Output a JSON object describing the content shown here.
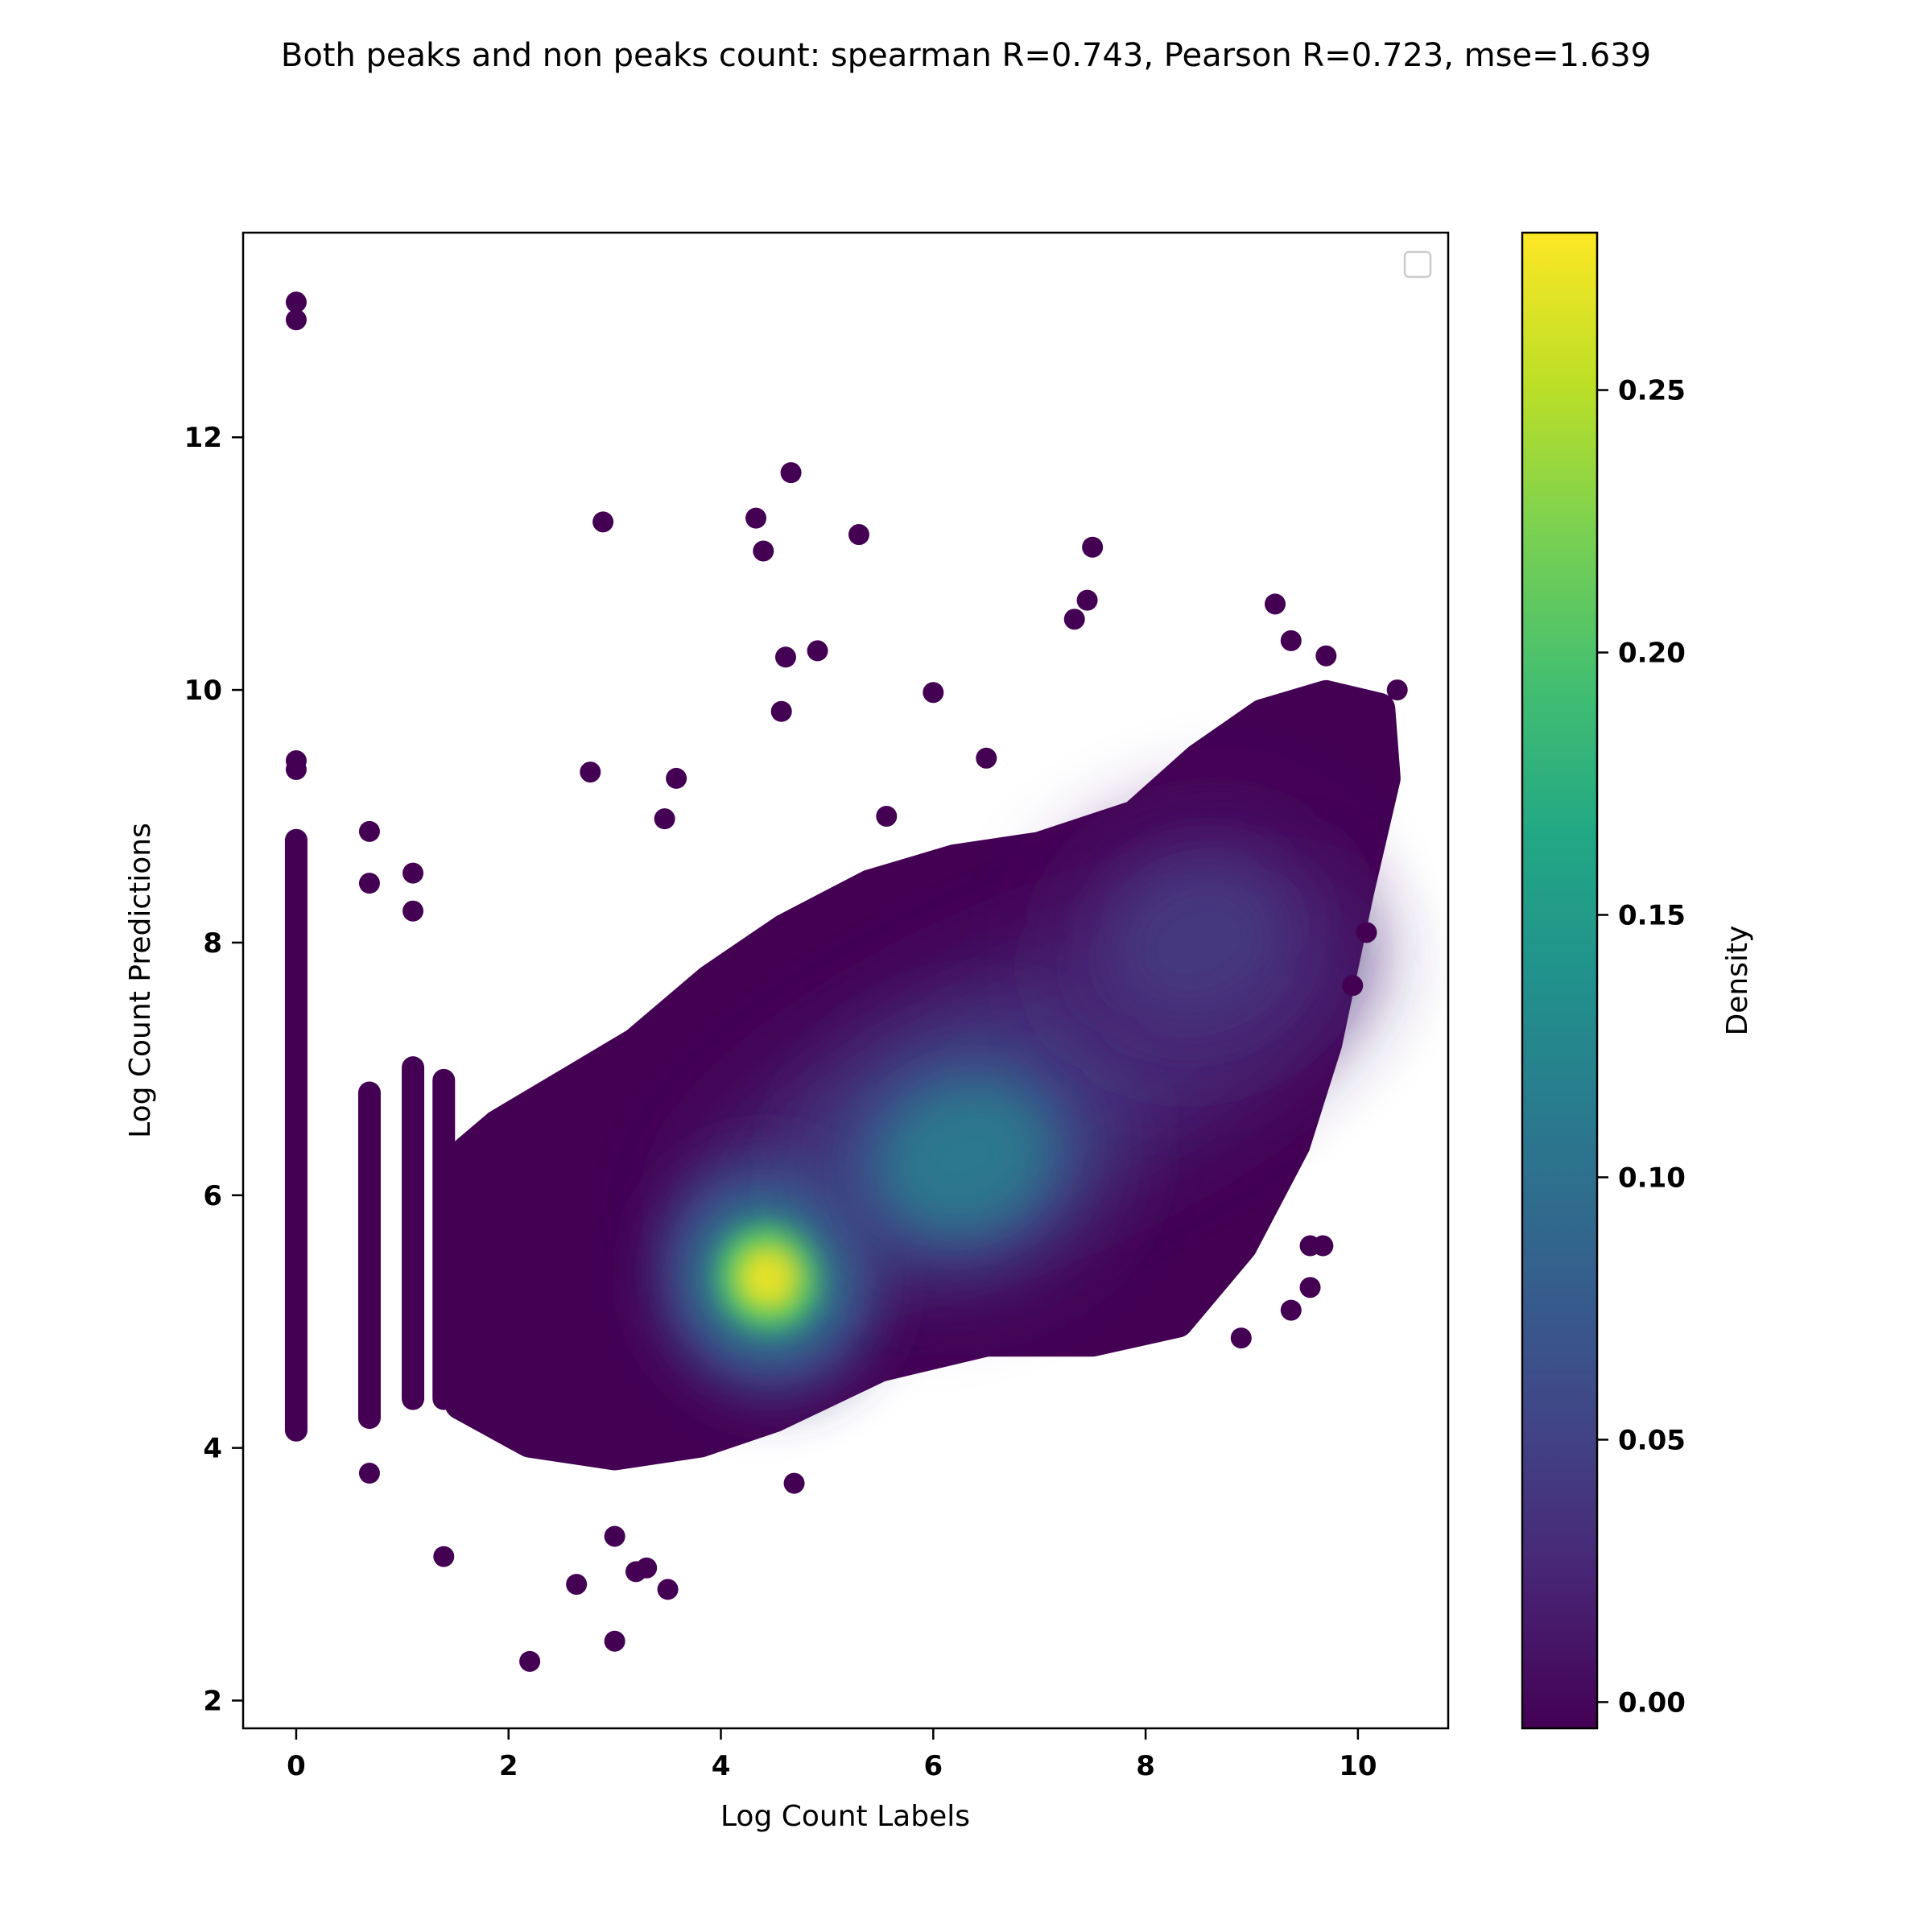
{
  "chart_data": {
    "type": "scatter",
    "title": "Both peaks and non peaks count: spearman R=0.743, Pearson R=0.723, mse=1.639",
    "xlabel": "Log Count Labels",
    "ylabel": "Log Count Predictions",
    "xlim": [
      -0.5,
      10.85
    ],
    "ylim": [
      1.78,
      13.62
    ],
    "xticks": [
      0,
      2,
      4,
      6,
      8,
      10
    ],
    "yticks": [
      2,
      4,
      6,
      8,
      10,
      12
    ],
    "grid": false,
    "legend": "top-right (empty)",
    "color_encoding": "density",
    "colormap": "viridis",
    "colorbar": {
      "label": "Density",
      "range": [
        -0.005,
        0.28
      ],
      "ticks": [
        "0.00",
        "0.05",
        "0.10",
        "0.15",
        "0.20",
        "0.25"
      ]
    },
    "density_peaks": [
      {
        "x": 4.45,
        "y": 5.35,
        "density": 0.27
      },
      {
        "x": 6.3,
        "y": 6.3,
        "density": 0.11
      },
      {
        "x": 8.5,
        "y": 8.0,
        "density": 0.04
      }
    ],
    "vertical_clusters": [
      {
        "x": 0.0,
        "y_min": 4.05,
        "y_max": 8.9
      },
      {
        "x": 0.69,
        "y_min": 4.15,
        "y_max": 6.9
      },
      {
        "x": 1.1,
        "y_min": 4.3,
        "y_max": 7.1
      },
      {
        "x": 1.39,
        "y_min": 4.3,
        "y_max": 7.0
      }
    ],
    "outliers": [
      {
        "x": 0.0,
        "y": 13.07
      },
      {
        "x": 0.0,
        "y": 12.93
      },
      {
        "x": 0.0,
        "y": 9.44
      },
      {
        "x": 0.0,
        "y": 9.37
      },
      {
        "x": 0.69,
        "y": 8.88
      },
      {
        "x": 0.69,
        "y": 8.47
      },
      {
        "x": 0.69,
        "y": 3.8
      },
      {
        "x": 1.1,
        "y": 8.55
      },
      {
        "x": 1.1,
        "y": 8.25
      },
      {
        "x": 1.39,
        "y": 3.14
      },
      {
        "x": 2.2,
        "y": 2.31
      },
      {
        "x": 2.64,
        "y": 2.92
      },
      {
        "x": 2.89,
        "y": 11.33
      },
      {
        "x": 2.77,
        "y": 9.35
      },
      {
        "x": 3.0,
        "y": 3.3
      },
      {
        "x": 3.0,
        "y": 2.47
      },
      {
        "x": 3.2,
        "y": 3.02
      },
      {
        "x": 3.3,
        "y": 3.05
      },
      {
        "x": 3.5,
        "y": 2.88
      },
      {
        "x": 3.58,
        "y": 9.3
      },
      {
        "x": 3.47,
        "y": 8.98
      },
      {
        "x": 4.33,
        "y": 11.36
      },
      {
        "x": 4.4,
        "y": 11.1
      },
      {
        "x": 4.66,
        "y": 11.72
      },
      {
        "x": 4.61,
        "y": 10.26
      },
      {
        "x": 4.57,
        "y": 9.83
      },
      {
        "x": 4.91,
        "y": 10.31
      },
      {
        "x": 4.69,
        "y": 3.72
      },
      {
        "x": 5.3,
        "y": 11.23
      },
      {
        "x": 5.56,
        "y": 9.0
      },
      {
        "x": 6.0,
        "y": 9.98
      },
      {
        "x": 6.5,
        "y": 9.46
      },
      {
        "x": 7.33,
        "y": 10.56
      },
      {
        "x": 7.45,
        "y": 10.71
      },
      {
        "x": 7.5,
        "y": 11.13
      },
      {
        "x": 9.22,
        "y": 10.68
      },
      {
        "x": 9.37,
        "y": 10.39
      },
      {
        "x": 9.7,
        "y": 10.27
      },
      {
        "x": 10.37,
        "y": 10.0
      },
      {
        "x": 9.55,
        "y": 5.6
      },
      {
        "x": 9.67,
        "y": 5.6
      },
      {
        "x": 9.55,
        "y": 5.27
      },
      {
        "x": 9.37,
        "y": 5.09
      },
      {
        "x": 8.9,
        "y": 4.87
      },
      {
        "x": 9.95,
        "y": 7.66
      },
      {
        "x": 10.08,
        "y": 8.08
      }
    ]
  }
}
